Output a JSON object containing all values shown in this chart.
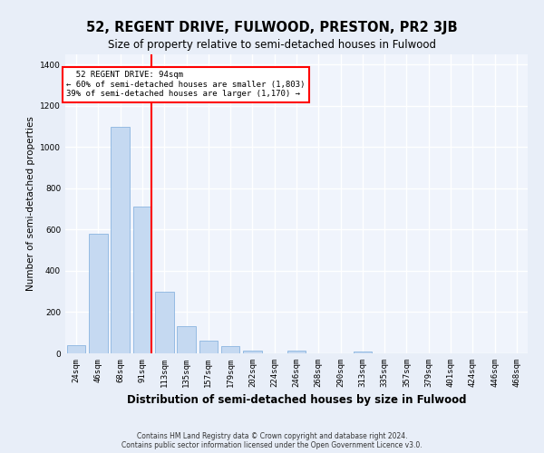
{
  "title": "52, REGENT DRIVE, FULWOOD, PRESTON, PR2 3JB",
  "subtitle": "Size of property relative to semi-detached houses in Fulwood",
  "xlabel": "Distribution of semi-detached houses by size in Fulwood",
  "ylabel": "Number of semi-detached properties",
  "footer_line1": "Contains HM Land Registry data © Crown copyright and database right 2024.",
  "footer_line2": "Contains public sector information licensed under the Open Government Licence v3.0.",
  "bar_labels": [
    "24sqm",
    "46sqm",
    "68sqm",
    "91sqm",
    "113sqm",
    "135sqm",
    "157sqm",
    "179sqm",
    "202sqm",
    "224sqm",
    "246sqm",
    "268sqm",
    "290sqm",
    "313sqm",
    "335sqm",
    "357sqm",
    "379sqm",
    "401sqm",
    "424sqm",
    "446sqm",
    "468sqm"
  ],
  "bar_values": [
    40,
    580,
    1100,
    710,
    300,
    130,
    63,
    35,
    15,
    0,
    15,
    0,
    0,
    10,
    0,
    0,
    0,
    0,
    0,
    0,
    0
  ],
  "bar_color": "#c5d9f1",
  "bar_edge_color": "#7aabdb",
  "red_line_index": 3,
  "red_line_label": "52 REGENT DRIVE: 94sqm",
  "annotation_line1": "← 60% of semi-detached houses are smaller (1,803)",
  "annotation_line2": "39% of semi-detached houses are larger (1,170) →",
  "ylim": [
    0,
    1450
  ],
  "yticks": [
    0,
    200,
    400,
    600,
    800,
    1000,
    1200,
    1400
  ],
  "bg_color": "#e8eef8",
  "plot_bg_color": "#f0f4fc",
  "grid_color": "#ffffff",
  "title_fontsize": 10.5,
  "subtitle_fontsize": 8.5,
  "axis_label_fontsize": 7.5,
  "tick_fontsize": 6.5,
  "footer_fontsize": 5.5
}
